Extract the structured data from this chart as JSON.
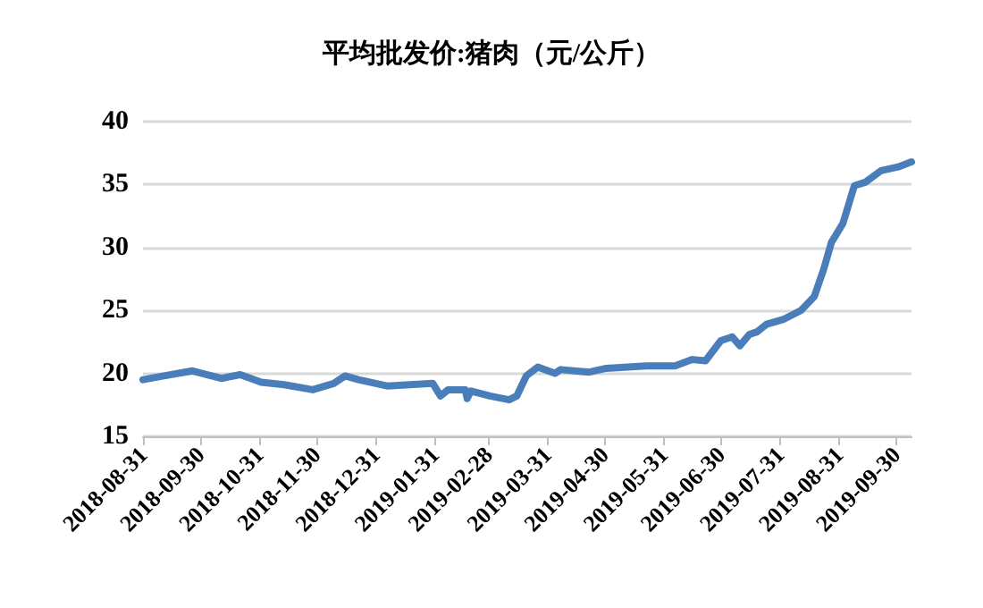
{
  "chart_data": {
    "type": "line",
    "title": "平均批发价:猪肉（元/公斤）",
    "x": [
      "2018-08-31",
      "2018-09-11",
      "2018-09-26",
      "2018-10-11",
      "2018-10-21",
      "2018-11-01",
      "2018-11-13",
      "2018-11-28",
      "2018-12-09",
      "2018-12-15",
      "2018-12-22",
      "2019-01-06",
      "2019-01-30",
      "2019-02-03",
      "2019-02-07",
      "2019-02-16",
      "2019-02-17",
      "2019-02-19",
      "2019-03-01",
      "2019-03-11",
      "2019-03-15",
      "2019-03-20",
      "2019-03-26",
      "2019-04-04",
      "2019-04-07",
      "2019-04-22",
      "2019-05-01",
      "2019-05-22",
      "2019-06-06",
      "2019-06-15",
      "2019-06-22",
      "2019-06-30",
      "2019-07-06",
      "2019-07-10",
      "2019-07-15",
      "2019-07-19",
      "2019-07-24",
      "2019-08-02",
      "2019-08-11",
      "2019-08-18",
      "2019-08-23",
      "2019-08-27",
      "2019-09-02",
      "2019-09-08",
      "2019-09-14",
      "2019-09-22",
      "2019-10-01",
      "2019-10-08"
    ],
    "values": [
      19.5,
      19.8,
      20.2,
      19.6,
      19.9,
      19.3,
      19.1,
      18.7,
      19.2,
      19.8,
      19.5,
      19.0,
      19.2,
      18.2,
      18.7,
      18.7,
      18.0,
      18.6,
      18.2,
      17.9,
      18.2,
      19.8,
      20.5,
      20.0,
      20.3,
      20.1,
      20.4,
      20.6,
      20.6,
      21.1,
      21.0,
      22.6,
      22.9,
      22.2,
      23.1,
      23.3,
      23.9,
      24.3,
      25.0,
      26.1,
      28.3,
      30.4,
      31.9,
      34.9,
      35.2,
      36.1,
      36.4,
      36.8
    ],
    "color": "#4a7ebb",
    "xlim": [
      "2018-08-31",
      "2019-10-08"
    ],
    "xticks": [
      "2018-08-31",
      "2018-09-30",
      "2018-10-31",
      "2018-11-30",
      "2018-12-31",
      "2019-01-31",
      "2019-02-28",
      "2019-03-31",
      "2019-04-30",
      "2019-05-31",
      "2019-06-30",
      "2019-07-31",
      "2019-08-31",
      "2019-09-30"
    ],
    "ylim": [
      15,
      40
    ],
    "yticks": [
      15,
      20,
      25,
      30,
      35,
      40
    ],
    "grid": "y",
    "marker": "none",
    "line_style": "solid"
  }
}
